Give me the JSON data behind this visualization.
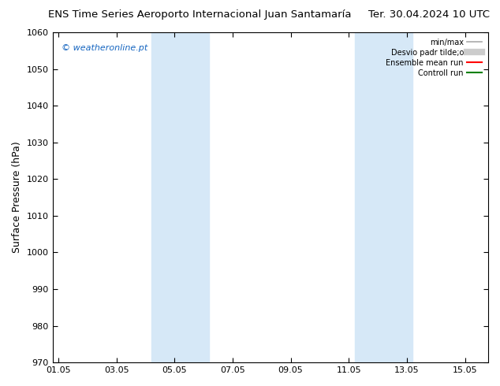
{
  "title_left": "ENS Time Series Aeroporto Internacional Juan Santamaría",
  "title_right": "Ter. 30.04.2024 10 UTC",
  "ylabel": "Surface Pressure (hPa)",
  "ylim": [
    970,
    1060
  ],
  "yticks": [
    970,
    980,
    990,
    1000,
    1010,
    1020,
    1030,
    1040,
    1050,
    1060
  ],
  "xtick_labels": [
    "01.05",
    "03.05",
    "05.05",
    "07.05",
    "09.05",
    "11.05",
    "13.05",
    "15.05"
  ],
  "xtick_positions": [
    0,
    2,
    4,
    6,
    8,
    10,
    12,
    14
  ],
  "xlim": [
    -0.2,
    14.8
  ],
  "shaded_bands": [
    {
      "xmin": 3.2,
      "xmax": 5.2
    },
    {
      "xmin": 10.2,
      "xmax": 12.2
    }
  ],
  "band_color": "#d6e8f7",
  "background_color": "#ffffff",
  "plot_bg_color": "#ffffff",
  "watermark": "© weatheronline.pt",
  "watermark_color": "#1565c0",
  "legend_labels": [
    "min/max",
    "Desvio padr tilde;o",
    "Ensemble mean run",
    "Controll run"
  ],
  "legend_colors": [
    "#aaaaaa",
    "#cccccc",
    "#ff0000",
    "#008000"
  ],
  "legend_lws": [
    1.2,
    6,
    1.5,
    1.5
  ],
  "legend_fontsize": 7,
  "title_fontsize": 9.5,
  "ylabel_fontsize": 9,
  "tick_fontsize": 8
}
